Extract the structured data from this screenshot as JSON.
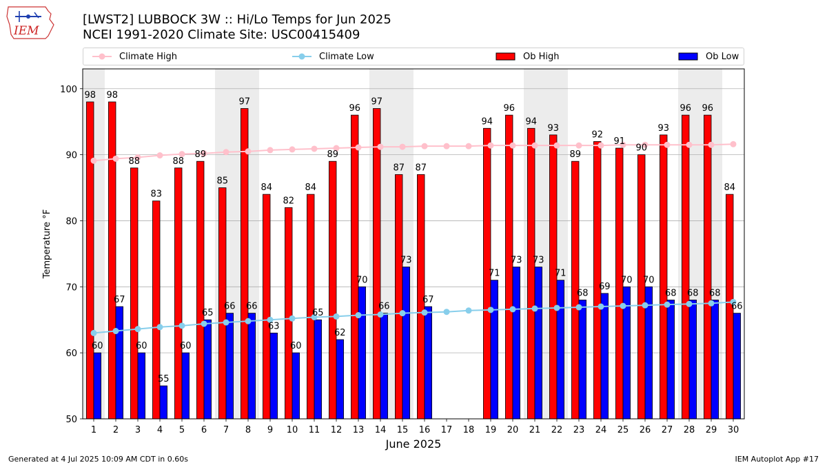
{
  "header": {
    "logo_text": "IEM",
    "title_line1": "[LWST2] LUBBOCK 3W :: Hi/Lo Temps for Jun 2025",
    "title_line2": "NCEI 1991-2020 Climate Site: USC00415409"
  },
  "legend": [
    {
      "label": "Climate High",
      "color": "#ffc0cb",
      "kind": "line"
    },
    {
      "label": "Climate Low",
      "color": "#87ceeb",
      "kind": "line"
    },
    {
      "label": "Ob High",
      "color": "#ff0000",
      "kind": "bar"
    },
    {
      "label": "Ob Low",
      "color": "#0000ff",
      "kind": "bar"
    }
  ],
  "footer": {
    "left": "Generated at 4 Jul 2025 10:09 AM CDT in 0.60s",
    "right": "IEM Autoplot App #17"
  },
  "chart_data": {
    "type": "bar",
    "xlabel": "June 2025",
    "ylabel": "Temperature °F",
    "ylim": [
      50,
      103
    ],
    "yticks": [
      50,
      60,
      70,
      80,
      90,
      100
    ],
    "grid": true,
    "legend_position": "top",
    "categories": [
      "1",
      "2",
      "3",
      "4",
      "5",
      "6",
      "7",
      "8",
      "9",
      "10",
      "11",
      "12",
      "13",
      "14",
      "15",
      "16",
      "17",
      "18",
      "19",
      "20",
      "21",
      "22",
      "23",
      "24",
      "25",
      "26",
      "27",
      "28",
      "29",
      "30"
    ],
    "weekend_days": [
      1,
      7,
      8,
      14,
      15,
      21,
      22,
      28,
      29
    ],
    "series": [
      {
        "name": "Ob High",
        "type": "bar",
        "color": "#ff0000",
        "values": [
          98,
          98,
          88,
          83,
          88,
          89,
          85,
          97,
          84,
          82,
          84,
          89,
          96,
          97,
          87,
          87,
          null,
          null,
          94,
          96,
          94,
          93,
          89,
          92,
          91,
          90,
          93,
          96,
          96,
          84
        ]
      },
      {
        "name": "Ob Low",
        "type": "bar",
        "color": "#0000ff",
        "values": [
          60,
          67,
          60,
          55,
          60,
          65,
          66,
          66,
          63,
          60,
          65,
          62,
          70,
          66,
          73,
          67,
          null,
          null,
          71,
          73,
          73,
          71,
          68,
          69,
          70,
          70,
          68,
          68,
          68,
          66
        ]
      },
      {
        "name": "Climate High",
        "type": "line",
        "color": "#ffc0cb",
        "values": [
          89.1,
          89.4,
          89.6,
          89.9,
          90.1,
          90.2,
          90.4,
          90.5,
          90.7,
          90.8,
          90.9,
          91.0,
          91.1,
          91.2,
          91.2,
          91.3,
          91.3,
          91.3,
          91.4,
          91.4,
          91.4,
          91.4,
          91.4,
          91.4,
          91.5,
          91.5,
          91.5,
          91.5,
          91.5,
          91.6
        ]
      },
      {
        "name": "Climate Low",
        "type": "line",
        "color": "#87ceeb",
        "values": [
          63.0,
          63.3,
          63.6,
          63.9,
          64.1,
          64.4,
          64.6,
          64.8,
          65.0,
          65.2,
          65.4,
          65.5,
          65.7,
          65.8,
          66.0,
          66.1,
          66.2,
          66.4,
          66.5,
          66.6,
          66.7,
          66.8,
          66.9,
          67.0,
          67.1,
          67.2,
          67.3,
          67.4,
          67.5,
          67.7
        ]
      }
    ]
  }
}
